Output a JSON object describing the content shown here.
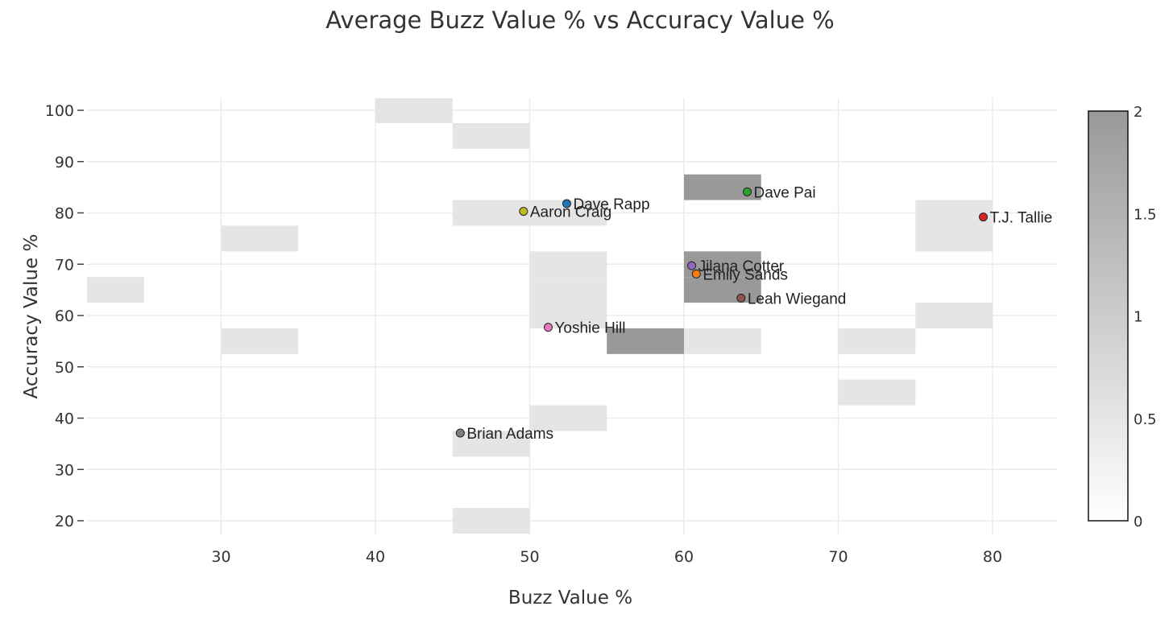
{
  "chart_data": {
    "type": "scatter",
    "title": "Average Buzz Value % vs Accuracy Value %",
    "xlabel": "Buzz Value %",
    "ylabel": "Accuracy Value %",
    "xlim": [
      21,
      84
    ],
    "ylim": [
      17,
      103
    ],
    "x_ticks": [
      30,
      40,
      50,
      60,
      70,
      80
    ],
    "y_ticks": [
      20,
      30,
      40,
      50,
      60,
      70,
      80,
      90,
      100
    ],
    "grid": true,
    "points": [
      {
        "name": "Dave Rapp",
        "x": 52.4,
        "y": 81.8,
        "color": "#1f77b4"
      },
      {
        "name": "Aaron Craig",
        "x": 49.6,
        "y": 80.3,
        "color": "#bcbd22"
      },
      {
        "name": "Dave Pai",
        "x": 64.1,
        "y": 84.1,
        "color": "#2ca02c"
      },
      {
        "name": "T.J. Tallie",
        "x": 79.4,
        "y": 79.2,
        "color": "#d62728"
      },
      {
        "name": "Jilana Cotter",
        "x": 60.5,
        "y": 69.7,
        "color": "#9467bd"
      },
      {
        "name": "Emily Sands",
        "x": 60.8,
        "y": 68.1,
        "color": "#ff7f0e"
      },
      {
        "name": "Leah Wiegand",
        "x": 63.7,
        "y": 63.4,
        "color": "#8c564b"
      },
      {
        "name": "Yoshie Hill",
        "x": 51.2,
        "y": 57.7,
        "color": "#e377c2"
      },
      {
        "name": "Brian Adams",
        "x": 45.5,
        "y": 37.1,
        "color": "#7f7f7f"
      }
    ],
    "heatmap": {
      "x_bin_size": 5,
      "y_bin_size": 5,
      "cells": [
        {
          "x0": 40,
          "y0": 97.5,
          "count": 1
        },
        {
          "x0": 45,
          "y0": 92.5,
          "count": 1
        },
        {
          "x0": 45,
          "y0": 77.5,
          "count": 1
        },
        {
          "x0": 50,
          "y0": 77.5,
          "count": 1
        },
        {
          "x0": 60,
          "y0": 82.5,
          "count": 2
        },
        {
          "x0": 30,
          "y0": 72.5,
          "count": 1
        },
        {
          "x0": 75,
          "y0": 77.5,
          "count": 1
        },
        {
          "x0": 75,
          "y0": 72.5,
          "count": 1
        },
        {
          "x0": 21,
          "x1": 25,
          "y0": 62.5,
          "count": 1
        },
        {
          "x0": 50,
          "y0": 67.5,
          "count": 1
        },
        {
          "x0": 50,
          "y0": 62.5,
          "count": 1
        },
        {
          "x0": 50,
          "y0": 57.5,
          "count": 1
        },
        {
          "x0": 60,
          "y0": 67.5,
          "count": 2
        },
        {
          "x0": 60,
          "y0": 62.5,
          "count": 2
        },
        {
          "x0": 75,
          "y0": 57.5,
          "count": 1
        },
        {
          "x0": 30,
          "y0": 52.5,
          "count": 1
        },
        {
          "x0": 55,
          "y0": 52.5,
          "count": 2
        },
        {
          "x0": 60,
          "y0": 52.5,
          "count": 1
        },
        {
          "x0": 70,
          "y0": 52.5,
          "count": 1
        },
        {
          "x0": 70,
          "y0": 42.5,
          "count": 1
        },
        {
          "x0": 50,
          "y0": 37.5,
          "count": 1
        },
        {
          "x0": 45,
          "y0": 32.5,
          "count": 1
        },
        {
          "x0": 45,
          "y0": 17.5,
          "count": 1
        }
      ]
    },
    "colorbar": {
      "min": 0,
      "max": 2,
      "tick_values": [
        0,
        0.5,
        1,
        1.5,
        2
      ],
      "tick_labels": [
        "0",
        "0.5",
        "1",
        "1.5",
        "2"
      ],
      "color_low": "#ffffff",
      "color_high": "#999999"
    }
  }
}
